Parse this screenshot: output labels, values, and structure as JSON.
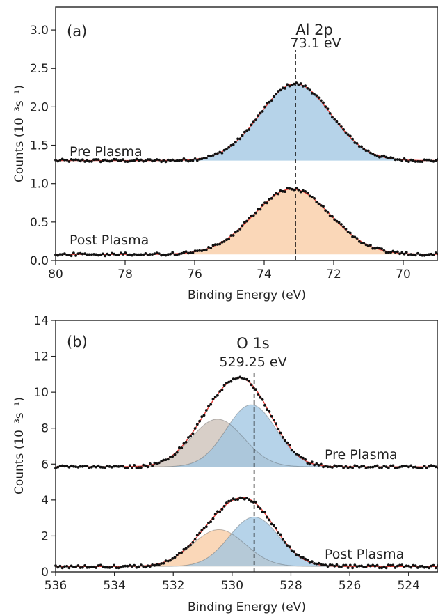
{
  "colors": {
    "blue_fill": "#9ec4e2",
    "orange_fill": "#f8c9a0",
    "gray_fill": "#cbbfb5",
    "fit_line": "#e8403a",
    "data_points": "#111111"
  },
  "chart_data": [
    {
      "panel": "(a)",
      "type": "line",
      "peak_name": "Al 2p",
      "peak_energy_label": "73.1 eV",
      "reference_line_x": 73.1,
      "xlabel": "Binding Energy (eV)",
      "ylabel": "Counts (10⁻³s⁻¹)",
      "xlim": [
        80,
        69
      ],
      "ylim": [
        0.0,
        3.3
      ],
      "x_reversed": true,
      "x_ticks": [
        80,
        78,
        76,
        74,
        72,
        70
      ],
      "x_tick_labels": [
        "80",
        "78",
        "76",
        "74",
        "72",
        "70"
      ],
      "y_ticks": [
        0.0,
        0.5,
        1.0,
        1.5,
        2.0,
        2.5,
        3.0
      ],
      "y_tick_labels": [
        "0.0",
        "0.5",
        "1.0",
        "1.5",
        "2.0",
        "2.5",
        "3.0"
      ],
      "series": [
        {
          "name": "Pre Plasma",
          "baseline": 1.3,
          "components": [
            {
              "center": 73.1,
              "height": 1.0,
              "fwhm": 2.4,
              "fill": "#9ec4e2"
            }
          ]
        },
        {
          "name": "Post Plasma",
          "baseline": 0.08,
          "components": [
            {
              "center": 73.2,
              "height": 0.85,
              "fwhm": 2.6,
              "fill": "#f8c9a0"
            }
          ]
        }
      ]
    },
    {
      "panel": "(b)",
      "type": "line",
      "peak_name": "O 1s",
      "peak_energy_label": "529.25 eV",
      "reference_line_x": 529.25,
      "xlabel": "Binding Energy (eV)",
      "ylabel": "Counts (10⁻³s⁻¹)",
      "xlim": [
        536,
        523
      ],
      "ylim": [
        0,
        14
      ],
      "x_reversed": true,
      "x_ticks": [
        536,
        534,
        532,
        530,
        528,
        526,
        524
      ],
      "x_tick_labels": [
        "536",
        "534",
        "532",
        "530",
        "528",
        "526",
        "524"
      ],
      "y_ticks": [
        0,
        2,
        4,
        6,
        8,
        10,
        12,
        14
      ],
      "y_tick_labels": [
        "0",
        "2",
        "4",
        "6",
        "8",
        "10",
        "12",
        "14"
      ],
      "series": [
        {
          "name": "Pre Plasma",
          "baseline": 5.85,
          "components": [
            {
              "center": 530.5,
              "height": 2.65,
              "fwhm": 2.1,
              "fill": "#cbbfb5"
            },
            {
              "center": 529.35,
              "height": 3.45,
              "fwhm": 2.0,
              "fill": "#9ec4e2"
            }
          ]
        },
        {
          "name": "Post Plasma",
          "baseline": 0.3,
          "components": [
            {
              "center": 530.45,
              "height": 2.05,
              "fwhm": 2.1,
              "fill": "#f8c9a0"
            },
            {
              "center": 529.25,
              "height": 2.75,
              "fwhm": 2.0,
              "fill": "#9ec4e2"
            }
          ]
        }
      ]
    }
  ]
}
